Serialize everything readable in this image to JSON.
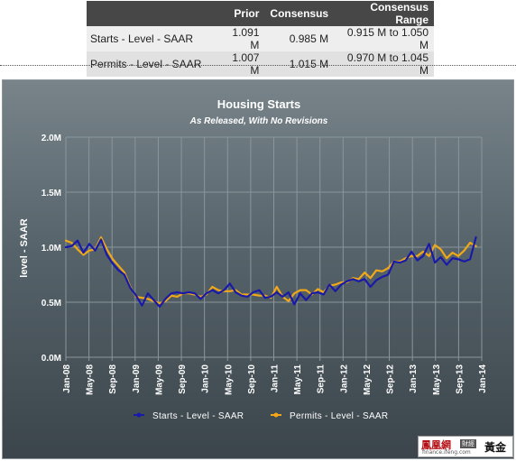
{
  "consensus_table": {
    "headers": [
      "",
      "Prior",
      "Consensus",
      "Consensus Range"
    ],
    "rows": [
      {
        "label": "Starts - Level - SAAR",
        "prior": "1.091 M",
        "consensus": "0.985 M",
        "range": "0.915 M to 1.050 M"
      },
      {
        "label": "Permits - Level - SAAR",
        "prior": "1.007 M",
        "consensus": "1.015 M",
        "range": "0.970 M to 1.045 M"
      }
    ]
  },
  "colors": {
    "starts": "#1a1aa8",
    "permits": "#f0a818",
    "panel_top": "#78848a",
    "panel_bottom": "#3b454b",
    "table_header": "#474747"
  },
  "logo": {
    "text": "鳳凰網",
    "badge": "財經",
    "url": "finance.ifeng.com",
    "gold": "黃金"
  },
  "chart_data": {
    "type": "line",
    "title": "Housing Starts",
    "subtitle": "As Released, With No Revisions",
    "ylabel": "level - SAAR",
    "xlabel": "",
    "ylim": [
      0,
      2.0
    ],
    "y_ticks": [
      0,
      0.5,
      1.0,
      1.5,
      2.0
    ],
    "y_tick_labels": [
      "0.0M",
      "0.5M",
      "1.0M",
      "1.5M",
      "2.0M"
    ],
    "x_tick_labels": [
      "Jan-08",
      "May-08",
      "Sep-08",
      "Jan-09",
      "May-09",
      "Sep-09",
      "Jan-10",
      "May-10",
      "Sep-10",
      "Jan-11",
      "May-11",
      "Sep-11",
      "Jan-12",
      "May-12",
      "Sep-12",
      "Jan-13",
      "May-13",
      "Sep-13",
      "Jan-14"
    ],
    "x_start": "Jan-08",
    "x_end": "Jan-14",
    "grid": true,
    "legend_position": "bottom",
    "series": [
      {
        "name": "Starts - Level - SAAR",
        "values": [
          1.0,
          1.01,
          1.06,
          0.95,
          1.03,
          0.97,
          1.07,
          0.93,
          0.85,
          0.79,
          0.75,
          0.63,
          0.56,
          0.47,
          0.58,
          0.52,
          0.46,
          0.53,
          0.58,
          0.59,
          0.58,
          0.59,
          0.58,
          0.53,
          0.58,
          0.61,
          0.58,
          0.61,
          0.67,
          0.59,
          0.56,
          0.55,
          0.59,
          0.61,
          0.54,
          0.55,
          0.59,
          0.55,
          0.59,
          0.48,
          0.58,
          0.52,
          0.58,
          0.59,
          0.57,
          0.66,
          0.6,
          0.66,
          0.69,
          0.71,
          0.69,
          0.71,
          0.64,
          0.7,
          0.73,
          0.75,
          0.87,
          0.86,
          0.88,
          0.96,
          0.88,
          0.92,
          1.03,
          0.86,
          0.91,
          0.84,
          0.9,
          0.89,
          0.87,
          0.89,
          1.09
        ]
      },
      {
        "name": "Permits - Level - SAAR",
        "values": [
          1.06,
          1.04,
          0.98,
          0.93,
          0.97,
          0.98,
          1.09,
          0.98,
          0.89,
          0.83,
          0.77,
          0.64,
          0.55,
          0.54,
          0.53,
          0.51,
          0.49,
          0.51,
          0.56,
          0.55,
          0.58,
          0.58,
          0.57,
          0.55,
          0.57,
          0.64,
          0.61,
          0.6,
          0.6,
          0.61,
          0.57,
          0.57,
          0.57,
          0.56,
          0.56,
          0.54,
          0.64,
          0.55,
          0.51,
          0.58,
          0.61,
          0.61,
          0.57,
          0.62,
          0.59,
          0.65,
          0.66,
          0.68,
          0.68,
          0.72,
          0.71,
          0.77,
          0.72,
          0.79,
          0.78,
          0.81,
          0.87,
          0.87,
          0.9,
          0.92,
          0.92,
          0.96,
          0.92,
          1.02,
          0.98,
          0.9,
          0.95,
          0.92,
          0.97,
          1.04,
          1.01
        ]
      }
    ]
  }
}
